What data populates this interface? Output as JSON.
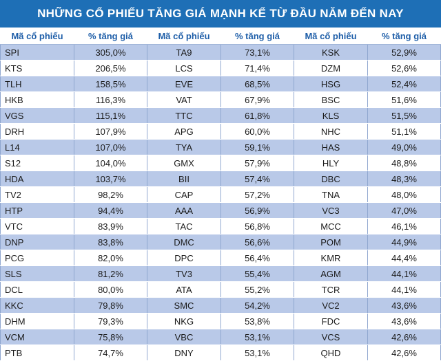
{
  "title": "NHỮNG CỔ PHIẾU TĂNG GIÁ MẠNH KỂ TỪ ĐẦU NĂM ĐẾN NAY",
  "headers": {
    "code": "Mã cổ phiếu",
    "pct": "% tăng giá"
  },
  "rows": [
    [
      [
        "SPI",
        "305,0%"
      ],
      [
        "TA9",
        "73,1%"
      ],
      [
        "KSK",
        "52,9%"
      ]
    ],
    [
      [
        "KTS",
        "206,5%"
      ],
      [
        "LCS",
        "71,4%"
      ],
      [
        "DZM",
        "52,6%"
      ]
    ],
    [
      [
        "TLH",
        "158,5%"
      ],
      [
        "EVE",
        "68,5%"
      ],
      [
        "HSG",
        "52,4%"
      ]
    ],
    [
      [
        "HKB",
        "116,3%"
      ],
      [
        "VAT",
        "67,9%"
      ],
      [
        "BSC",
        "51,6%"
      ]
    ],
    [
      [
        "VGS",
        "115,1%"
      ],
      [
        "TTC",
        "61,8%"
      ],
      [
        "KLS",
        "51,5%"
      ]
    ],
    [
      [
        "DRH",
        "107,9%"
      ],
      [
        "APG",
        "60,0%"
      ],
      [
        "NHC",
        "51,1%"
      ]
    ],
    [
      [
        "L14",
        "107,0%"
      ],
      [
        "TYA",
        "59,1%"
      ],
      [
        "HAS",
        "49,0%"
      ]
    ],
    [
      [
        "S12",
        "104,0%"
      ],
      [
        "GMX",
        "57,9%"
      ],
      [
        "HLY",
        "48,8%"
      ]
    ],
    [
      [
        "HDA",
        "103,7%"
      ],
      [
        "BII",
        "57,4%"
      ],
      [
        "DBC",
        "48,3%"
      ]
    ],
    [
      [
        "TV2",
        "98,2%"
      ],
      [
        "CAP",
        "57,2%"
      ],
      [
        "TNA",
        "48,0%"
      ]
    ],
    [
      [
        "HTP",
        "94,4%"
      ],
      [
        "AAA",
        "56,9%"
      ],
      [
        "VC3",
        "47,0%"
      ]
    ],
    [
      [
        "VTC",
        "83,9%"
      ],
      [
        "TAC",
        "56,8%"
      ],
      [
        "MCC",
        "46,1%"
      ]
    ],
    [
      [
        "DNP",
        "83,8%"
      ],
      [
        "DMC",
        "56,6%"
      ],
      [
        "POM",
        "44,9%"
      ]
    ],
    [
      [
        "PCG",
        "82,0%"
      ],
      [
        "DPC",
        "56,4%"
      ],
      [
        "KMR",
        "44,4%"
      ]
    ],
    [
      [
        "SLS",
        "81,2%"
      ],
      [
        "TV3",
        "55,4%"
      ],
      [
        "AGM",
        "44,1%"
      ]
    ],
    [
      [
        "DCL",
        "80,0%"
      ],
      [
        "ATA",
        "55,2%"
      ],
      [
        "TCR",
        "44,1%"
      ]
    ],
    [
      [
        "KKC",
        "79,8%"
      ],
      [
        "SMC",
        "54,2%"
      ],
      [
        "VC2",
        "43,6%"
      ]
    ],
    [
      [
        "DHM",
        "79,3%"
      ],
      [
        "NKG",
        "53,8%"
      ],
      [
        "FDC",
        "43,6%"
      ]
    ],
    [
      [
        "VCM",
        "75,8%"
      ],
      [
        "VBC",
        "53,1%"
      ],
      [
        "VCS",
        "42,6%"
      ]
    ],
    [
      [
        "PTB",
        "74,7%"
      ],
      [
        "DNY",
        "53,1%"
      ],
      [
        "QHD",
        "42,6%"
      ]
    ]
  ]
}
